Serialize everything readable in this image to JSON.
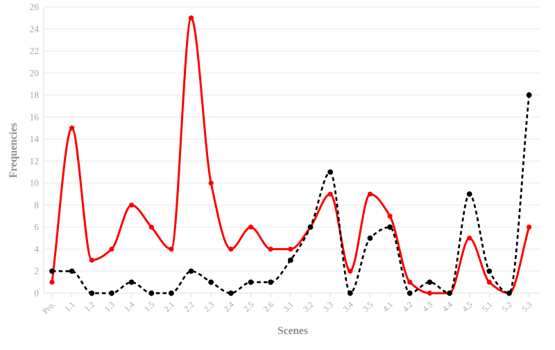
{
  "page": {
    "background": "#ffffff"
  },
  "chart_data": {
    "type": "line",
    "title": "",
    "xlabel": "Scenes",
    "ylabel": "Frequencies",
    "categories": [
      "Pro.",
      "1.1",
      "1.2",
      "1.3",
      "1.4",
      "1.5",
      "2.1",
      "2.2",
      "2.3",
      "2.4",
      "2.5",
      "2.6",
      "3.1",
      "3.2",
      "3.3",
      "3.4",
      "3.5",
      "4.1",
      "4.2",
      "4.3",
      "4.4",
      "4.5",
      "5.1",
      "5.2",
      "5.3"
    ],
    "series": [
      {
        "name": "red-solid",
        "color": "#fe0000",
        "line_style": "solid",
        "marker": "circle",
        "values": [
          1,
          15,
          3,
          4,
          8,
          6,
          4,
          25,
          10,
          4,
          6,
          4,
          4,
          6,
          9,
          2,
          9,
          7,
          1,
          0,
          0,
          5,
          1,
          0,
          6
        ]
      },
      {
        "name": "black-dashed",
        "color": "#000000",
        "line_style": "dashed",
        "marker": "circle",
        "values": [
          2,
          2,
          0,
          0,
          1,
          0,
          0,
          2,
          1,
          0,
          1,
          1,
          3,
          6,
          11,
          0,
          5,
          6,
          0,
          1,
          0,
          9,
          2,
          0,
          18
        ]
      }
    ],
    "ylim": [
      0,
      26
    ],
    "yticks": [
      0,
      2,
      4,
      6,
      8,
      10,
      12,
      14,
      16,
      18,
      20,
      22,
      24,
      26
    ],
    "grid": "horizontal",
    "legend_position": "none",
    "interpolation": "monotone",
    "axis_text_color": "#a6a6a6",
    "axis_title_color": "#8f8f8f",
    "grid_color": "#f3f3f3",
    "axis_line_color": "#e4e4e4",
    "tick_mark_color": "#dcdcdc"
  }
}
